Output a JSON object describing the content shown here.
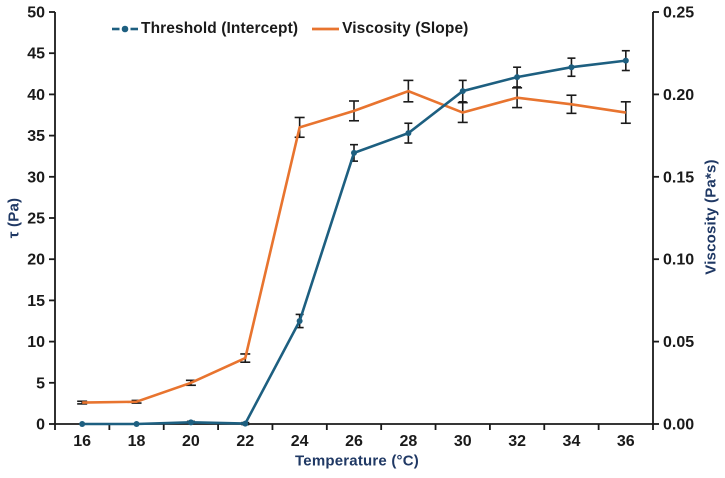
{
  "chart_data": {
    "type": "line",
    "title": "",
    "categories": [
      16,
      18,
      20,
      22,
      24,
      26,
      28,
      30,
      32,
      34,
      36
    ],
    "series": [
      {
        "name": "Threshold (Intercept)",
        "axis": "left",
        "marker": "circle",
        "line_style": "solid",
        "values": [
          0,
          0,
          0.2,
          0.05,
          12.5,
          32.9,
          35.3,
          40.4,
          42.1,
          43.3,
          44.1
        ],
        "errors": [
          0,
          0,
          0.12,
          0.12,
          0.8,
          1.0,
          1.2,
          1.3,
          1.2,
          1.1,
          1.2
        ]
      },
      {
        "name": "Viscosity (Slope)",
        "axis": "right",
        "marker": "none",
        "line_style": "solid",
        "values": [
          0.013,
          0.0135,
          0.025,
          0.04,
          0.18,
          0.19,
          0.202,
          0.189,
          0.198,
          0.194,
          0.189
        ],
        "errors": [
          0.0008,
          0.0008,
          0.0015,
          0.0025,
          0.006,
          0.006,
          0.0065,
          0.006,
          0.006,
          0.0055,
          0.0065
        ]
      }
    ],
    "x_axis": {
      "label": "Temperature (°C)",
      "tick_labels": [
        "16",
        "18",
        "20",
        "22",
        "24",
        "26",
        "28",
        "30",
        "32",
        "34",
        "36"
      ]
    },
    "left_axis": {
      "label": "τ (Pa)",
      "min": 0,
      "max": 50,
      "ticks": [
        "0",
        "5",
        "10",
        "15",
        "20",
        "25",
        "30",
        "35",
        "40",
        "45",
        "50"
      ]
    },
    "right_axis": {
      "label": "Viscosity (Pa*s)",
      "min": 0,
      "max": 0.25,
      "ticks": [
        "0.00",
        "0.05",
        "0.10",
        "0.15",
        "0.20",
        "0.25"
      ]
    },
    "legend": {
      "position": "top-center",
      "entries": [
        "Threshold (Intercept)",
        "Viscosity (Slope)"
      ]
    },
    "layout": {
      "grid": "off",
      "error_bars": "visible"
    },
    "colors": {
      "threshold_series": "#1D5F80",
      "viscosity_series": "#E8742F",
      "axis_titles": "#1F3864",
      "axis_lines": "#1a1a1a",
      "error_bars": "#1a1a1a"
    }
  }
}
